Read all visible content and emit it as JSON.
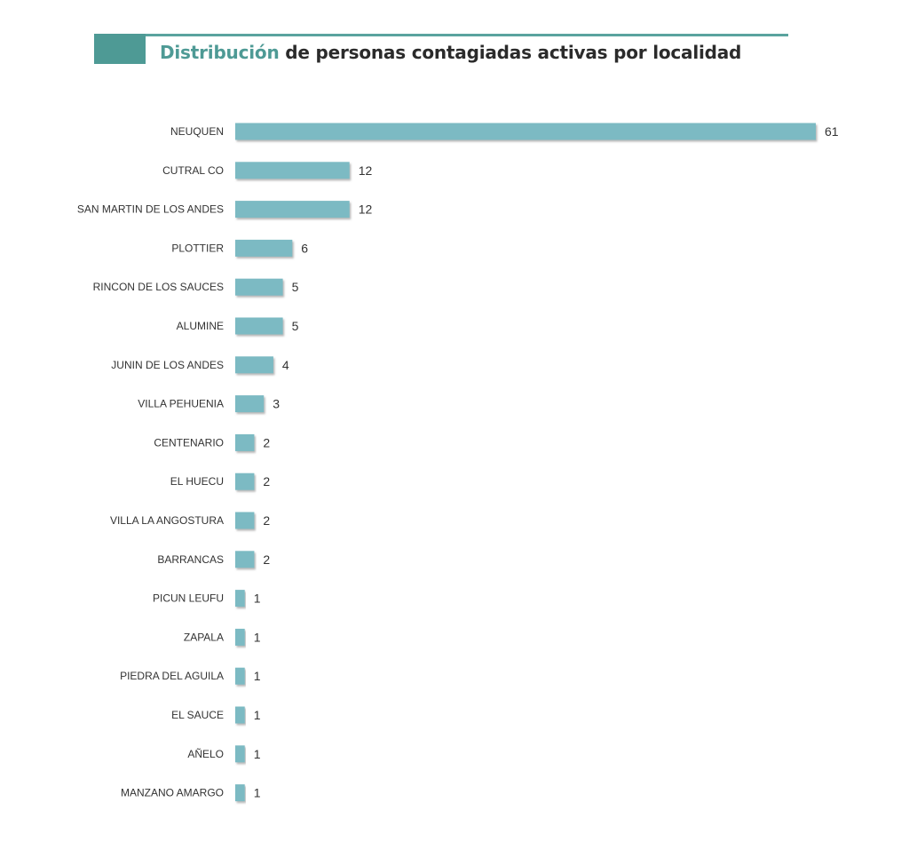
{
  "header": {
    "title_accent": "Distribución",
    "title_rest": "de personas contagiadas activas por localidad"
  },
  "colors": {
    "accent": "#4e9a95",
    "bar": "#7bbac3",
    "bar_shadow": "#9a9a9a",
    "text": "#333333"
  },
  "chart_data": {
    "type": "bar",
    "orientation": "horizontal",
    "title": "Distribución de personas contagiadas activas por localidad",
    "xlabel": "",
    "ylabel": "",
    "grid": false,
    "categories": [
      "NEUQUEN",
      "CUTRAL CO",
      "SAN MARTIN DE LOS ANDES",
      "PLOTTIER",
      "RINCON DE LOS SAUCES",
      "ALUMINE",
      "JUNIN DE LOS ANDES",
      "VILLA PEHUENIA",
      "CENTENARIO",
      "EL HUECU",
      "VILLA LA ANGOSTURA",
      "BARRANCAS",
      "PICUN LEUFU",
      "ZAPALA",
      "PIEDRA DEL AGUILA",
      "EL SAUCE",
      "AÑELO",
      "MANZANO AMARGO"
    ],
    "values": [
      61,
      12,
      12,
      6,
      5,
      5,
      4,
      3,
      2,
      2,
      2,
      2,
      1,
      1,
      1,
      1,
      1,
      1
    ],
    "data_labels": [
      "61",
      "12",
      "12",
      "6",
      "5",
      "5",
      "4",
      "3",
      "2",
      "2",
      "2",
      "2",
      "1",
      "1",
      "1",
      "1",
      "1",
      "1"
    ]
  }
}
